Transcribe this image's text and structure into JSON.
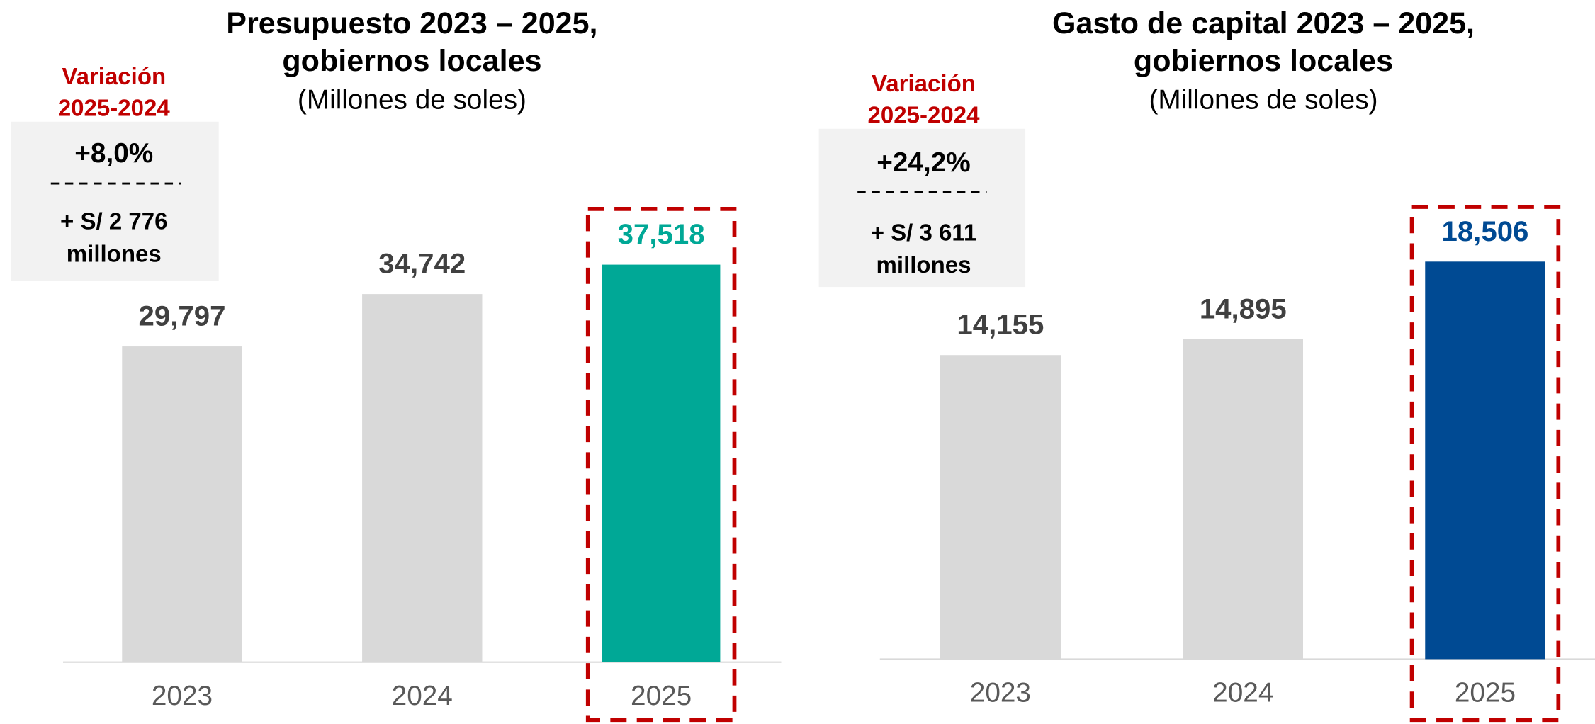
{
  "chart_data": [
    {
      "type": "bar",
      "title": [
        "Presupuesto 2023 – 2025,",
        "gobiernos locales"
      ],
      "subtitle": "(Millones de soles)",
      "categories": [
        "2023",
        "2024",
        "2025"
      ],
      "values": [
        29797,
        34742,
        37518
      ],
      "value_labels": [
        "29,797",
        "34,742",
        "37,518"
      ],
      "colors": [
        "#d9d9d9",
        "#d9d9d9",
        "#00a896"
      ],
      "value_label_colors": [
        "#404040",
        "#404040",
        "#00a896"
      ],
      "annotation": {
        "title": [
          "Variación",
          "2025-2024"
        ],
        "lines": [
          "+8,0%",
          "+ S/ 2 776",
          "millones"
        ]
      }
    },
    {
      "type": "bar",
      "title": [
        "Gasto de capital 2023 – 2025,",
        "gobiernos locales"
      ],
      "subtitle": "(Millones de soles)",
      "categories": [
        "2023",
        "2024",
        "2025"
      ],
      "values": [
        14155,
        14895,
        18506
      ],
      "value_labels": [
        "14,155",
        "14,895",
        "18,506"
      ],
      "colors": [
        "#d9d9d9",
        "#d9d9d9",
        "#004a93"
      ],
      "value_label_colors": [
        "#404040",
        "#404040",
        "#004a93"
      ],
      "annotation": {
        "title": [
          "Variación",
          "2025-2024"
        ],
        "lines": [
          "+24,2%",
          "+ S/ 3 611",
          "millones"
        ]
      }
    }
  ]
}
